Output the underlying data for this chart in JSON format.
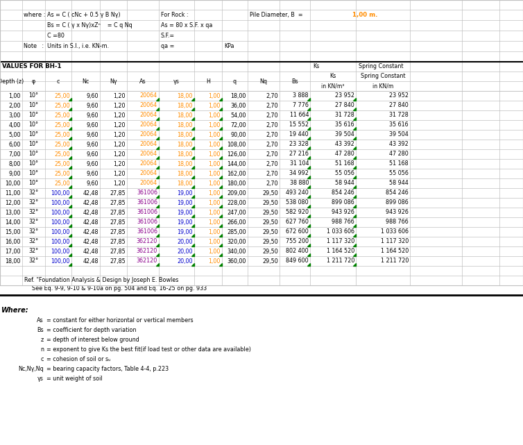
{
  "bg_color": "#ffffff",
  "grid_color": "#c0c0c0",
  "black": "#000000",
  "blue": "#0000cd",
  "orange": "#ff8c00",
  "purple": "#8b008b",
  "green": "#008000",
  "orange_value": "#ff8c00",
  "data": [
    [
      1.0,
      "10",
      25.0,
      9.6,
      1.2,
      20064,
      18.0,
      1.0,
      18.0,
      2.7,
      3888,
      23952,
      23952
    ],
    [
      2.0,
      "10",
      25.0,
      9.6,
      1.2,
      20064,
      18.0,
      1.0,
      36.0,
      2.7,
      7776,
      27840,
      27840
    ],
    [
      3.0,
      "10",
      25.0,
      9.6,
      1.2,
      20064,
      18.0,
      1.0,
      54.0,
      2.7,
      11664,
      31728,
      31728
    ],
    [
      4.0,
      "10",
      25.0,
      9.6,
      1.2,
      20064,
      18.0,
      1.0,
      72.0,
      2.7,
      15552,
      35616,
      35616
    ],
    [
      5.0,
      "10",
      25.0,
      9.6,
      1.2,
      20064,
      18.0,
      1.0,
      90.0,
      2.7,
      19440,
      39504,
      39504
    ],
    [
      6.0,
      "10",
      25.0,
      9.6,
      1.2,
      20064,
      18.0,
      1.0,
      108.0,
      2.7,
      23328,
      43392,
      43392
    ],
    [
      7.0,
      "10",
      25.0,
      9.6,
      1.2,
      20064,
      18.0,
      1.0,
      126.0,
      2.7,
      27216,
      47280,
      47280
    ],
    [
      8.0,
      "10",
      25.0,
      9.6,
      1.2,
      20064,
      18.0,
      1.0,
      144.0,
      2.7,
      31104,
      51168,
      51168
    ],
    [
      9.0,
      "10",
      25.0,
      9.6,
      1.2,
      20064,
      18.0,
      1.0,
      162.0,
      2.7,
      34992,
      55056,
      55056
    ],
    [
      10.0,
      "10",
      25.0,
      9.6,
      1.2,
      20064,
      18.0,
      1.0,
      180.0,
      2.7,
      38880,
      58944,
      58944
    ],
    [
      11.0,
      "32",
      100.0,
      42.48,
      27.85,
      361006,
      19.0,
      1.0,
      209.0,
      29.5,
      493240,
      854246,
      854246
    ],
    [
      12.0,
      "32",
      100.0,
      42.48,
      27.85,
      361006,
      19.0,
      1.0,
      228.0,
      29.5,
      538080,
      899086,
      899086
    ],
    [
      13.0,
      "32",
      100.0,
      42.48,
      27.85,
      361006,
      19.0,
      1.0,
      247.0,
      29.5,
      582920,
      943926,
      943926
    ],
    [
      14.0,
      "32",
      100.0,
      42.48,
      27.85,
      361006,
      19.0,
      1.0,
      266.0,
      29.5,
      627760,
      988766,
      988766
    ],
    [
      15.0,
      "32",
      100.0,
      42.48,
      27.85,
      361006,
      19.0,
      1.0,
      285.0,
      29.5,
      672600,
      1033606,
      1033606
    ],
    [
      16.0,
      "32",
      100.0,
      42.48,
      27.85,
      362120,
      20.0,
      1.0,
      320.0,
      29.5,
      755200,
      1117320,
      1117320
    ],
    [
      17.0,
      "32",
      100.0,
      42.48,
      27.85,
      362120,
      20.0,
      1.0,
      340.0,
      29.5,
      802400,
      1164520,
      1164520
    ],
    [
      18.0,
      "32",
      100.0,
      42.48,
      27.85,
      362120,
      20.0,
      1.0,
      360.0,
      29.5,
      849600,
      1211720,
      1211720
    ]
  ],
  "ref_line1": "Ref. \"Foundation Analysis & Design by Joseph E. Bowles",
  "ref_line2": "See Eq. 9-9, 9-10 & 9-10a on pg. 504 and Eq. 16-25 on pg. 933",
  "where_items": [
    [
      "As",
      "constant for either horizontal or vertical members"
    ],
    [
      "Bs",
      "coefficient for depth variation"
    ],
    [
      "z",
      "depth of interest below ground"
    ],
    [
      "n",
      "exponent to give Ks the best fit(if load test or other data are available)"
    ],
    [
      "c",
      "cohesion of soil or sᵤ"
    ],
    [
      "Nc,Nγ,Nq",
      "bearing capacity factors, Table 4-4, p.223"
    ],
    [
      "γs",
      "unit weight of soil"
    ]
  ]
}
